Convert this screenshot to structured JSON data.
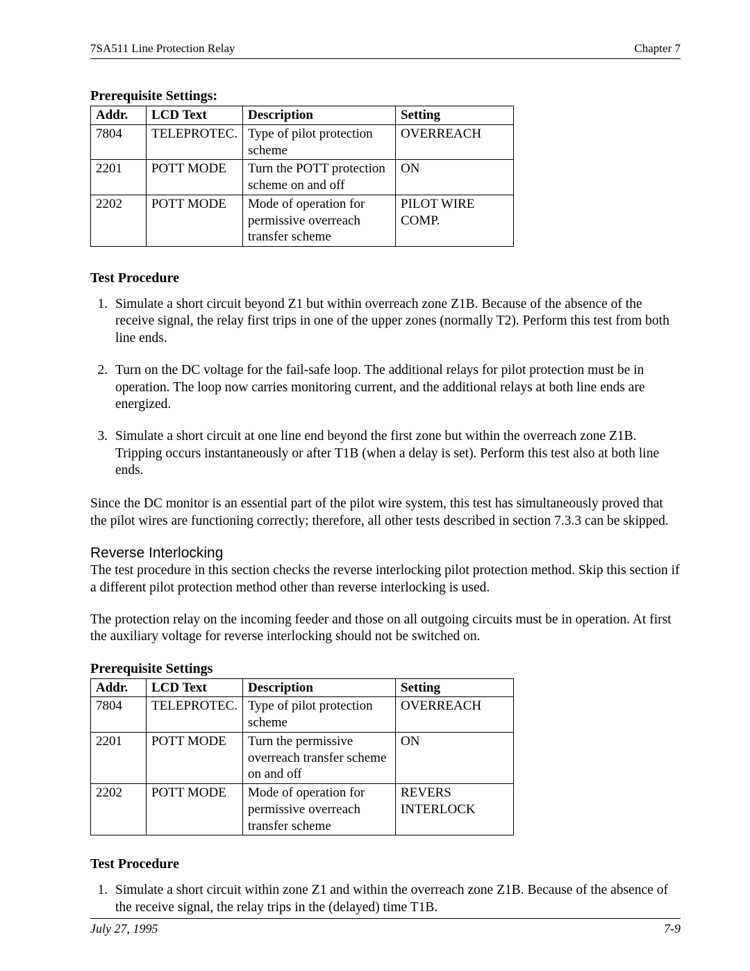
{
  "header": {
    "left": "7SA511 Line Protection Relay",
    "right": "Chapter 7"
  },
  "section1_title": "Prerequisite Settings:",
  "table1": {
    "headers": {
      "addr": "Addr.",
      "lcd": "LCD Text",
      "desc": "Description",
      "set": "Setting"
    },
    "rows": [
      {
        "addr": "7804",
        "lcd": "TELEPROTEC.",
        "desc": "Type of pilot protection scheme",
        "set": "OVERREACH"
      },
      {
        "addr": "2201",
        "lcd": "POTT MODE",
        "desc": "Turn the POTT protection scheme on and off",
        "set": "ON"
      },
      {
        "addr": "2202",
        "lcd": "POTT MODE",
        "desc": "Mode of operation for permissive overreach transfer scheme",
        "set": "PILOT WIRE COMP."
      }
    ]
  },
  "test_procedure_1_title": "Test Procedure",
  "list1": {
    "item1": "Simulate a short circuit beyond Z1 but within overreach zone Z1B. Because of the absence of the receive signal, the relay first trips in one of the upper zones (normally T2). Perform this test from both line ends.",
    "item2": "Turn on the DC voltage for the fail-safe loop. The additional relays for pilot protection must be in operation. The loop now carries monitoring current, and the additional relays at both line ends are energized.",
    "item3": "Simulate a short circuit at one line end beyond the first zone but within the overreach zone Z1B. Tripping occurs instantaneously or after T1B (when a delay is set). Perform this test also at both line ends."
  },
  "para_after_list1": "Since the DC monitor is an essential part of the pilot wire system, this test has simultaneously proved that the pilot wires are functioning correctly; therefore, all other tests described in section 7.3.3 can be skipped.",
  "sub_heading": "Reverse Interlocking",
  "para_rev1": "The test procedure in this section checks the reverse interlocking pilot protection method. Skip this section if a different pilot protection method other than reverse interlocking is used.",
  "para_rev2": "The protection relay on the incoming feeder and those on all outgoing circuits must be in operation. At first the auxiliary voltage for reverse interlocking should not be switched on.",
  "section2_title": "Prerequisite Settings",
  "table2": {
    "headers": {
      "addr": "Addr.",
      "lcd": "LCD Text",
      "desc": "Description",
      "set": "Setting"
    },
    "rows": [
      {
        "addr": "7804",
        "lcd": "TELEPROTEC.",
        "desc": "Type of pilot protection scheme",
        "set": "OVERREACH"
      },
      {
        "addr": "2201",
        "lcd": "POTT MODE",
        "desc": "Turn the permissive overreach transfer scheme on and off",
        "set": "ON"
      },
      {
        "addr": "2202",
        "lcd": "POTT MODE",
        "desc": "Mode of operation for permissive overreach transfer scheme",
        "set": "REVERS INTERLOCK"
      }
    ]
  },
  "test_procedure_2_title": "Test Procedure",
  "list2": {
    "item1": "Simulate a short circuit within zone Z1 and within the overreach zone Z1B. Because of the absence of the receive signal, the relay trips in the (delayed) time T1B."
  },
  "footer": {
    "left": "July 27, 1995",
    "right": "7-9"
  }
}
